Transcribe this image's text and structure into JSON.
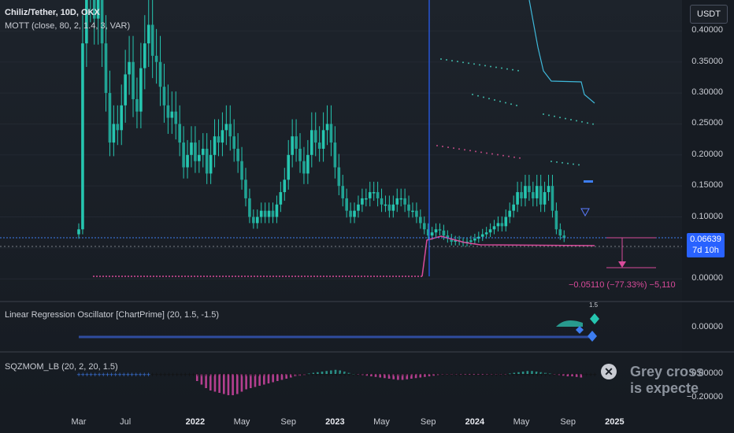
{
  "header": {
    "symbol_line": "Chiliz/Tether, 10D, OKX",
    "indicator_line": "MOTT (close, 80, 2, 1.4, 3, VAR)"
  },
  "currency_button": "USDT",
  "price_badge": {
    "price": "0.06639",
    "countdown": "7d 10h"
  },
  "measure_label": "−0.05110 (−77.33%) −5,110",
  "pane2": {
    "title": "Linear Regression Oscillator [ChartPrime] (20, 1.5, -1.5)",
    "marker_label": "1.5"
  },
  "pane3": {
    "title": "SQZMOM_LB (20, 2, 20, 1.5)"
  },
  "tip": {
    "line1": "Grey cross",
    "line2": "is expecte"
  },
  "colors": {
    "up": "#26c6b0",
    "down": "#26c6b0",
    "pink": "#d84b9a",
    "blue": "#2962ff",
    "cyan": "#3fb8d9",
    "teal_hist": "#2a8f86",
    "magenta_hist": "#b43f8f"
  },
  "chart_data": [
    {
      "type": "candlestick",
      "title": "Chiliz/Tether, 10D, OKX",
      "ylabel": "USDT",
      "ylim": [
        -0.02,
        0.45
      ],
      "y_ticks": [
        0.0,
        0.05,
        0.1,
        0.15,
        0.2,
        0.25,
        0.3,
        0.35,
        0.4
      ],
      "y_tick_labels": [
        "0.00000",
        "",
        "0.10000",
        "0.15000",
        "0.20000",
        "0.25000",
        "0.30000",
        "0.35000",
        "0.40000"
      ],
      "x_tick_labels": [
        "Mar",
        "Jul",
        "2022",
        "May",
        "Sep",
        "2023",
        "May",
        "Sep",
        "2024",
        "May",
        "Sep",
        "2025"
      ],
      "x_tick_index": [
        0,
        12,
        30,
        42,
        54,
        66,
        78,
        90,
        102,
        114,
        126,
        138
      ],
      "closes": [
        0.08,
        0.38,
        0.46,
        0.5,
        0.42,
        0.45,
        0.38,
        0.3,
        0.22,
        0.25,
        0.24,
        0.28,
        0.33,
        0.35,
        0.29,
        0.27,
        0.34,
        0.38,
        0.41,
        0.36,
        0.35,
        0.31,
        0.28,
        0.26,
        0.27,
        0.25,
        0.22,
        0.18,
        0.2,
        0.22,
        0.19,
        0.2,
        0.21,
        0.17,
        0.2,
        0.23,
        0.22,
        0.24,
        0.25,
        0.23,
        0.21,
        0.19,
        0.16,
        0.13,
        0.1,
        0.09,
        0.1,
        0.11,
        0.1,
        0.11,
        0.1,
        0.12,
        0.14,
        0.16,
        0.2,
        0.23,
        0.21,
        0.19,
        0.17,
        0.2,
        0.24,
        0.22,
        0.21,
        0.24,
        0.25,
        0.22,
        0.18,
        0.15,
        0.13,
        0.11,
        0.1,
        0.11,
        0.12,
        0.13,
        0.13,
        0.14,
        0.14,
        0.13,
        0.12,
        0.12,
        0.11,
        0.12,
        0.13,
        0.13,
        0.12,
        0.11,
        0.11,
        0.1,
        0.09,
        0.08,
        0.07,
        0.075,
        0.08,
        0.078,
        0.07,
        0.065,
        0.06,
        0.062,
        0.06,
        0.058,
        0.06,
        0.062,
        0.065,
        0.068,
        0.072,
        0.075,
        0.08,
        0.085,
        0.09,
        0.085,
        0.1,
        0.11,
        0.12,
        0.14,
        0.13,
        0.15,
        0.14,
        0.13,
        0.15,
        0.12,
        0.14,
        0.15,
        0.11,
        0.08,
        0.07,
        0.066
      ]
    },
    {
      "type": "bar",
      "title": "SQZMOM_LB (20, 2, 20, 1.5)",
      "ylim": [
        -0.25,
        0.05
      ],
      "y_ticks": [
        0.0,
        -0.2
      ],
      "y_tick_labels": [
        "0.00000",
        "−0.20000"
      ],
      "start_index": 29,
      "values": [
        -0.06,
        -0.09,
        -0.12,
        -0.14,
        -0.15,
        -0.16,
        -0.17,
        -0.18,
        -0.18,
        -0.17,
        -0.15,
        -0.13,
        -0.12,
        -0.11,
        -0.1,
        -0.09,
        -0.08,
        -0.07,
        -0.06,
        -0.05,
        -0.04,
        -0.03,
        -0.02,
        -0.015,
        -0.01,
        0.005,
        0.01,
        0.015,
        0.02,
        0.025,
        0.03,
        0.035,
        0.03,
        0.02,
        0.01,
        0.0,
        -0.005,
        -0.01,
        -0.015,
        -0.02,
        -0.025,
        -0.03,
        -0.035,
        -0.04,
        -0.045,
        -0.05,
        -0.05,
        -0.045,
        -0.04,
        -0.035,
        -0.03,
        -0.025,
        -0.02,
        -0.015,
        -0.01,
        -0.005,
        -0.005,
        -0.005,
        -0.005,
        -0.005,
        -0.005,
        -0.005,
        -0.005,
        -0.005,
        -0.005,
        -0.005,
        -0.005,
        -0.005,
        -0.005,
        -0.005,
        0.005,
        0.01,
        0.015,
        0.02,
        0.025,
        0.025,
        0.02,
        0.015,
        0.01,
        0.005,
        -0.005,
        -0.01,
        -0.015,
        -0.02,
        -0.02,
        -0.025,
        -0.03
      ]
    }
  ]
}
